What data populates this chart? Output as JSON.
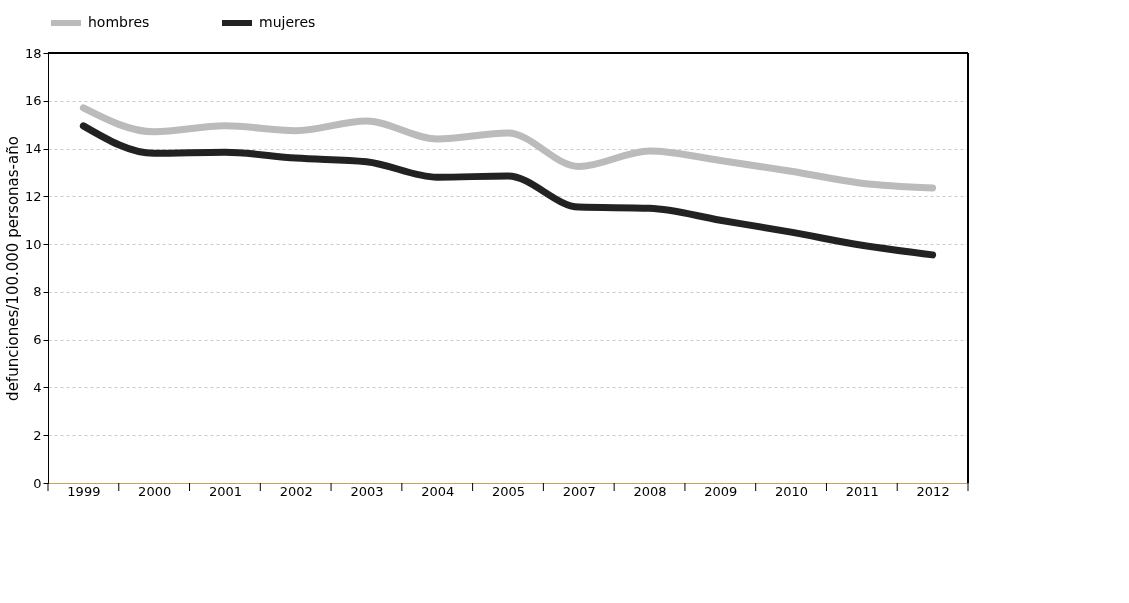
{
  "chart_data": {
    "type": "line",
    "ylabel": "defunciones/100.000 personas-año",
    "categories": [
      "1999",
      "2000",
      "2001",
      "2002",
      "2003",
      "2004",
      "2005",
      "2007",
      "2008",
      "2009",
      "2010",
      "2011",
      "2012"
    ],
    "series": [
      {
        "name": "hombres",
        "color": "#bbbbbb",
        "values": [
          15.7,
          14.7,
          14.95,
          14.75,
          15.15,
          14.4,
          14.65,
          13.25,
          13.9,
          13.5,
          13.05,
          12.55,
          12.35
        ]
      },
      {
        "name": "mujeres",
        "color": "#222222",
        "values": [
          14.95,
          13.8,
          13.85,
          13.6,
          13.45,
          12.8,
          12.85,
          11.55,
          11.5,
          11.0,
          10.5,
          9.95,
          9.55
        ]
      }
    ],
    "ylim": [
      0,
      18
    ],
    "yticks": [
      0,
      2,
      4,
      6,
      8,
      10,
      12,
      14,
      16,
      18
    ],
    "grid": "y",
    "legend": "top",
    "marker": "none",
    "line_style": "solid"
  }
}
